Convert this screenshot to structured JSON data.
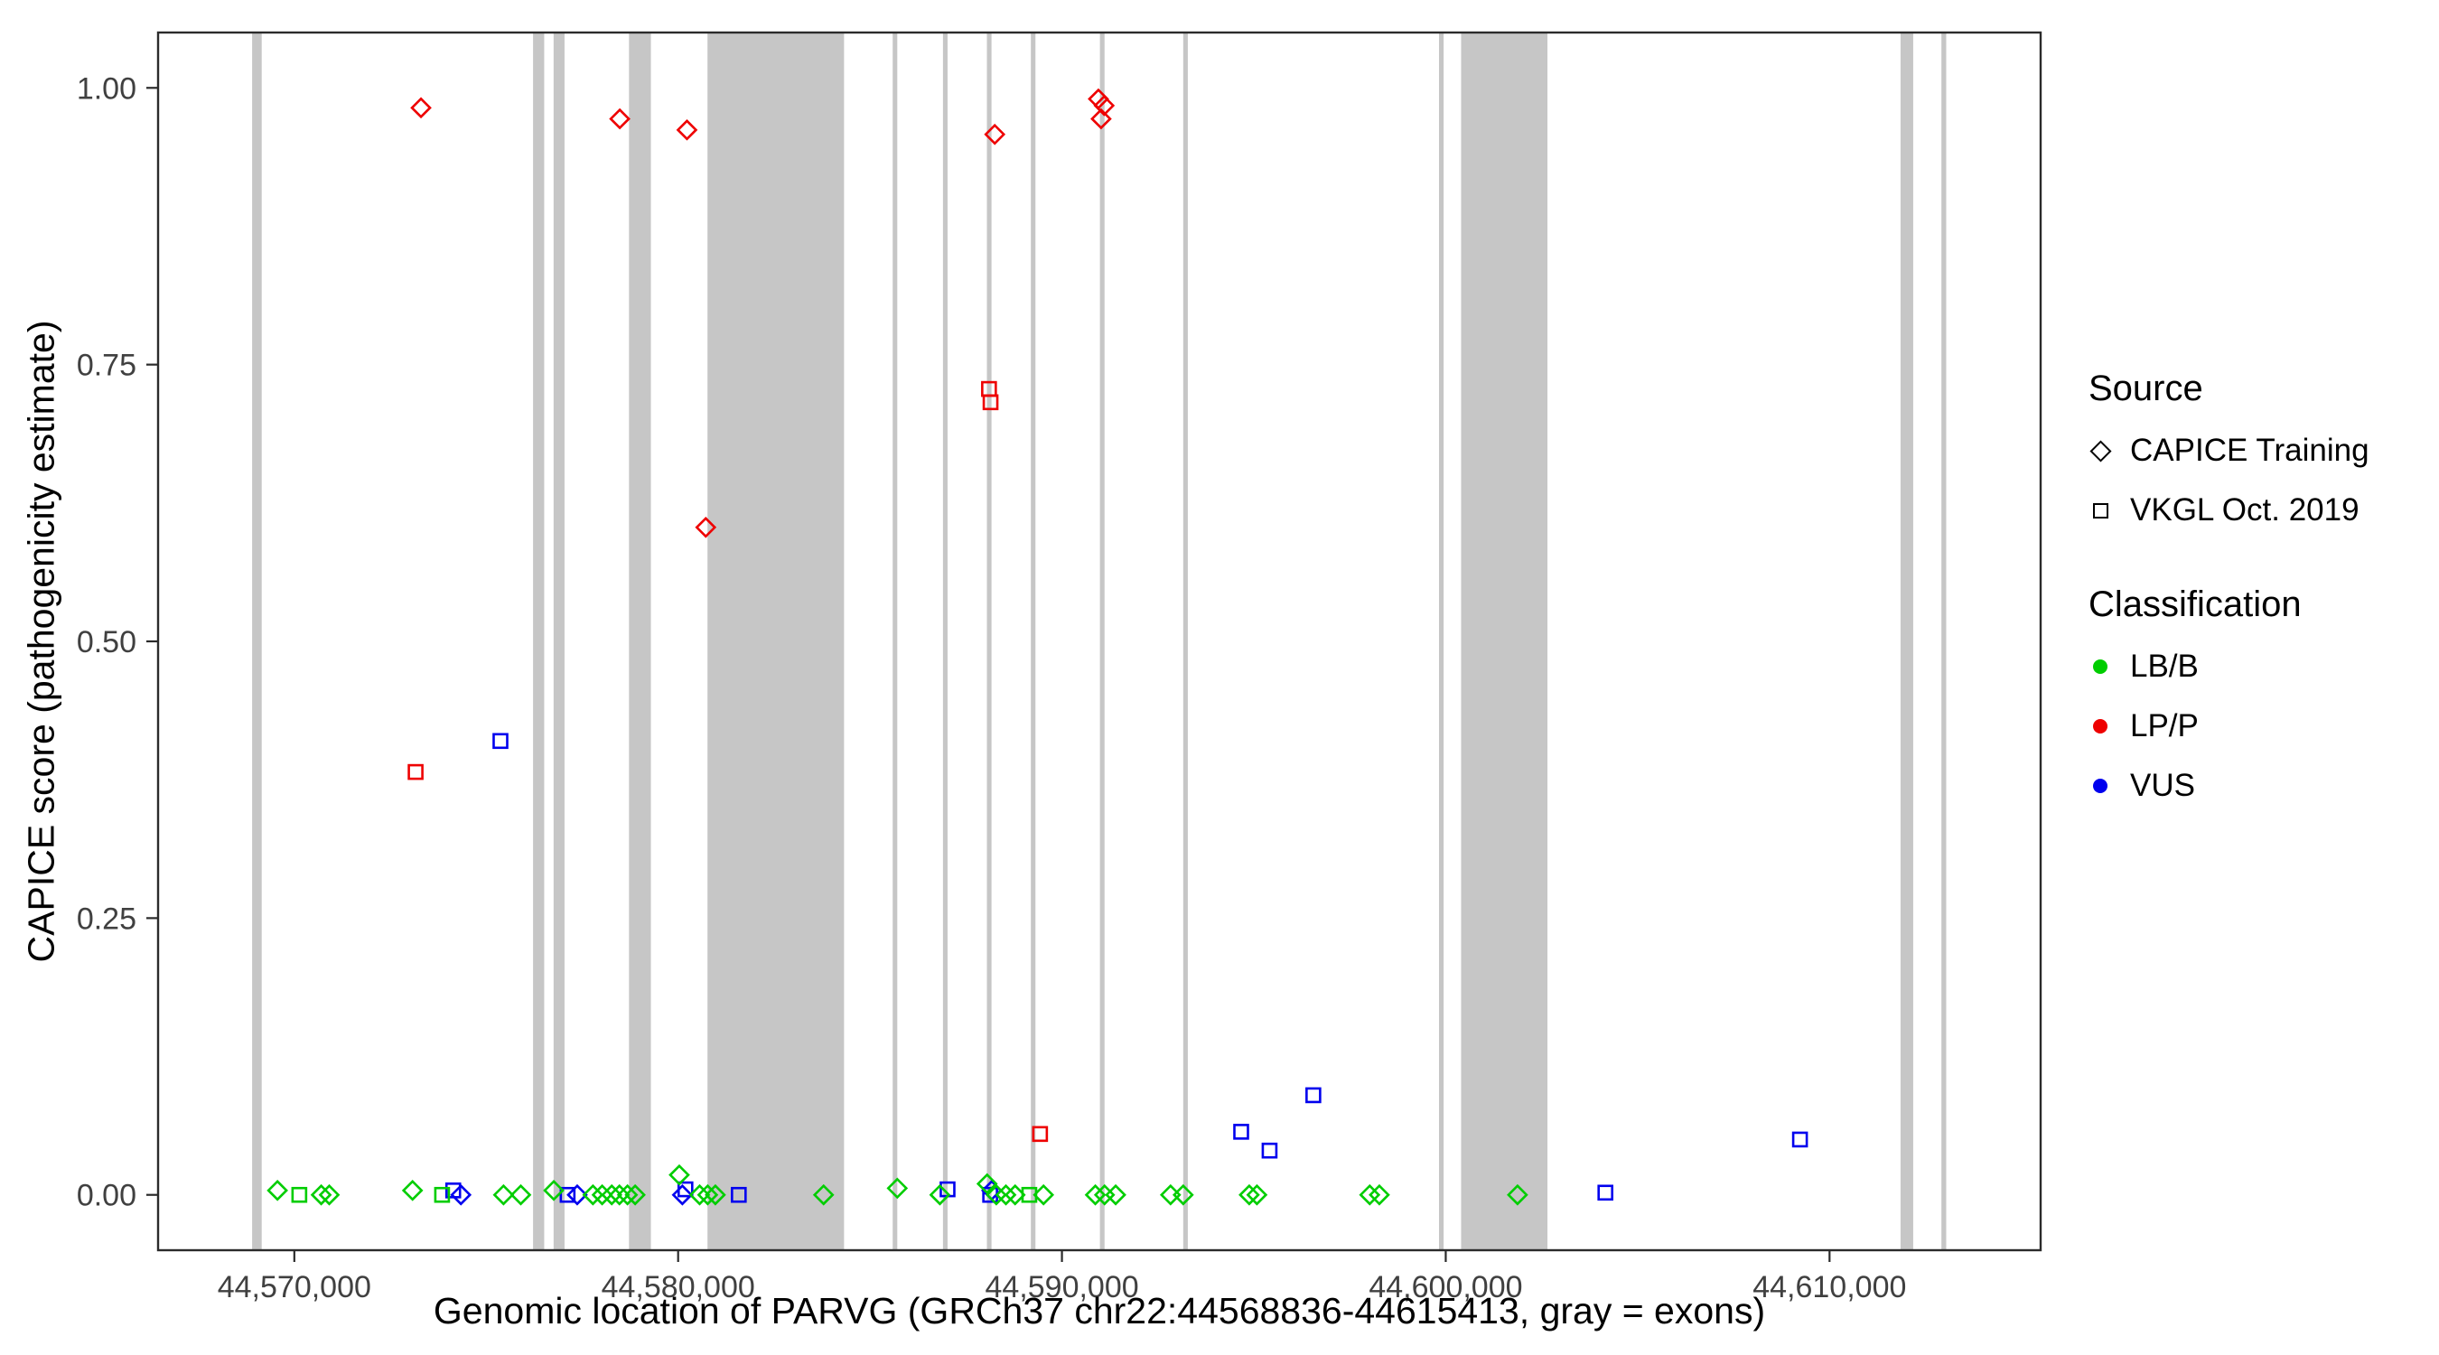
{
  "page": {
    "background": "#FFFFFF"
  },
  "colors": {
    "LB/B": "#00CD00",
    "LP/P": "#EE0000",
    "VUS": "#0000EE",
    "panel_border": "#2B2B2B",
    "tick_text": "#404040",
    "exon": "#C6C6C6"
  },
  "chart_data": {
    "type": "scatter",
    "title": "",
    "xlabel": "Genomic location of PARVG (GRCh37 chr22:44568836-44615413, gray = exons)",
    "ylabel": "CAPICE score (pathogenicity estimate)",
    "xlim": [
      44566450,
      44615500
    ],
    "ylim": [
      -0.05,
      1.05
    ],
    "grid": "off",
    "legend_position": "right",
    "x_ticks": [
      {
        "value": 44570000,
        "label": "44,570,000"
      },
      {
        "value": 44580000,
        "label": "44,580,000"
      },
      {
        "value": 44590000,
        "label": "44,590,000"
      },
      {
        "value": 44600000,
        "label": "44,600,000"
      },
      {
        "value": 44610000,
        "label": "44,610,000"
      }
    ],
    "y_ticks": [
      {
        "value": 0.0,
        "label": "0.00"
      },
      {
        "value": 0.25,
        "label": "0.25"
      },
      {
        "value": 0.5,
        "label": "0.50"
      },
      {
        "value": 0.75,
        "label": "0.75"
      },
      {
        "value": 1.0,
        "label": "1.00"
      }
    ],
    "exon_bands": [
      [
        44568900,
        44569150
      ],
      [
        44576220,
        44576510
      ],
      [
        44576755,
        44577040
      ],
      [
        44578720,
        44579290
      ],
      [
        44580765,
        44584323
      ],
      [
        44585590,
        44585710
      ],
      [
        44586900,
        44587020
      ],
      [
        44588045,
        44588165
      ],
      [
        44589190,
        44589310
      ],
      [
        44590990,
        44591110
      ],
      [
        44593160,
        44593280
      ],
      [
        44599825,
        44599945
      ],
      [
        44600400,
        44602650
      ],
      [
        44611850,
        44612180
      ],
      [
        44612915,
        44613040
      ]
    ],
    "series": [
      {
        "name": "CAPICE Training / LP/P",
        "source": "CAPICE Training",
        "classification": "LP/P",
        "marker": "diamond",
        "points": [
          [
            44573300,
            0.982
          ],
          [
            44578480,
            0.972
          ],
          [
            44580230,
            0.962
          ],
          [
            44580720,
            0.603
          ],
          [
            44588250,
            0.958
          ],
          [
            44590950,
            0.99
          ],
          [
            44591100,
            0.984
          ],
          [
            44591020,
            0.972
          ]
        ]
      },
      {
        "name": "VKGL Oct. 2019 / LP/P",
        "source": "VKGL Oct. 2019",
        "classification": "LP/P",
        "marker": "square",
        "points": [
          [
            44573160,
            0.382
          ],
          [
            44588100,
            0.728
          ],
          [
            44588140,
            0.716
          ],
          [
            44589430,
            0.055
          ]
        ]
      },
      {
        "name": "VKGL Oct. 2019 / VUS",
        "source": "VKGL Oct. 2019",
        "classification": "VUS",
        "marker": "square",
        "points": [
          [
            44575370,
            0.41
          ],
          [
            44594670,
            0.057
          ],
          [
            44595410,
            0.04
          ],
          [
            44596550,
            0.09
          ],
          [
            44609230,
            0.05
          ],
          [
            44604160,
            0.002
          ],
          [
            44574140,
            0.004
          ],
          [
            44577120,
            0.0
          ],
          [
            44580190,
            0.005
          ],
          [
            44581580,
            0.0
          ],
          [
            44587020,
            0.005
          ],
          [
            44588130,
            0.0
          ]
        ]
      },
      {
        "name": "CAPICE Training / VUS",
        "source": "CAPICE Training",
        "classification": "VUS",
        "marker": "diamond",
        "points": [
          [
            44574340,
            0.0
          ],
          [
            44577370,
            0.0
          ],
          [
            44580110,
            0.0
          ],
          [
            44588170,
            0.004
          ]
        ]
      },
      {
        "name": "CAPICE Training / LB/B",
        "source": "CAPICE Training",
        "classification": "LB/B",
        "marker": "diamond",
        "points": [
          [
            44569560,
            0.004
          ],
          [
            44570700,
            0.0
          ],
          [
            44570910,
            0.0
          ],
          [
            44573080,
            0.004
          ],
          [
            44575450,
            0.0
          ],
          [
            44575900,
            0.0
          ],
          [
            44576760,
            0.004
          ],
          [
            44577780,
            0.0
          ],
          [
            44578020,
            0.0
          ],
          [
            44578270,
            0.0
          ],
          [
            44578470,
            0.0
          ],
          [
            44578680,
            0.0
          ],
          [
            44578880,
            0.0
          ],
          [
            44580030,
            0.018
          ],
          [
            44580560,
            0.0
          ],
          [
            44580770,
            0.0
          ],
          [
            44580970,
            0.0
          ],
          [
            44583790,
            0.0
          ],
          [
            44585710,
            0.006
          ],
          [
            44586820,
            0.0
          ],
          [
            44588050,
            0.01
          ],
          [
            44588290,
            0.0
          ],
          [
            44588540,
            0.0
          ],
          [
            44588780,
            0.0
          ],
          [
            44589520,
            0.0
          ],
          [
            44590870,
            0.0
          ],
          [
            44591110,
            0.0
          ],
          [
            44591400,
            0.0
          ],
          [
            44592830,
            0.0
          ],
          [
            44593160,
            0.0
          ],
          [
            44594880,
            0.0
          ],
          [
            44595080,
            0.0
          ],
          [
            44598020,
            0.0
          ],
          [
            44598270,
            0.0
          ],
          [
            44601870,
            0.0
          ]
        ]
      },
      {
        "name": "VKGL Oct. 2019 / LB/B",
        "source": "VKGL Oct. 2019",
        "classification": "LB/B",
        "marker": "square",
        "points": [
          [
            44570130,
            0.0
          ],
          [
            44573850,
            0.0
          ],
          [
            44589150,
            0.0
          ]
        ]
      }
    ]
  },
  "legend": {
    "source_title": "Source",
    "source_items": [
      {
        "label": "CAPICE Training",
        "marker": "diamond"
      },
      {
        "label": "VKGL Oct. 2019",
        "marker": "square"
      }
    ],
    "class_title": "Classification",
    "class_items": [
      {
        "label": "LB/B",
        "color": "#00CD00"
      },
      {
        "label": "LP/P",
        "color": "#EE0000"
      },
      {
        "label": "VUS",
        "color": "#0000EE"
      }
    ]
  }
}
